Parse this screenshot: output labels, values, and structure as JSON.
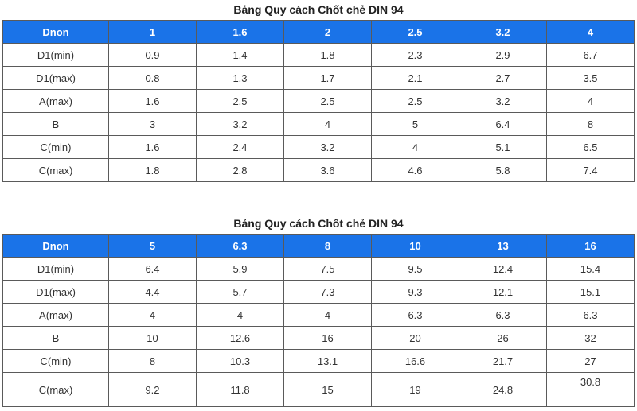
{
  "tables": [
    {
      "title": "Bảng Quy cách Chốt chẻ DIN 94",
      "header": [
        "Dnon",
        "1",
        "1.6",
        "2",
        "2.5",
        "3.2",
        "4"
      ],
      "rows": [
        [
          "D1(min)",
          "0.9",
          "1.4",
          "1.8",
          "2.3",
          "2.9",
          "6.7"
        ],
        [
          "D1(max)",
          "0.8",
          "1.3",
          "1.7",
          "2.1",
          "2.7",
          "3.5"
        ],
        [
          "A(max)",
          "1.6",
          "2.5",
          "2.5",
          "2.5",
          "3.2",
          "4"
        ],
        [
          "B",
          "3",
          "3.2",
          "4",
          "5",
          "6.4",
          "8"
        ],
        [
          "C(min)",
          "1.6",
          "2.4",
          "3.2",
          "4",
          "5.1",
          "6.5"
        ],
        [
          "C(max)",
          "1.8",
          "2.8",
          "3.6",
          "4.6",
          "5.8",
          "7.4"
        ]
      ]
    },
    {
      "title": "Bảng Quy cách Chốt chẻ DIN 94",
      "header": [
        "Dnon",
        "5",
        "6.3",
        "8",
        "10",
        "13",
        "16"
      ],
      "rows": [
        [
          "D1(min)",
          "6.4",
          "5.9",
          "7.5",
          "9.5",
          "12.4",
          "15.4"
        ],
        [
          "D1(max)",
          "4.4",
          "5.7",
          "7.3",
          "9.3",
          "12.1",
          "15.1"
        ],
        [
          "A(max)",
          "4",
          "4",
          "4",
          "6.3",
          "6.3",
          "6.3"
        ],
        [
          "B",
          "10",
          "12.6",
          "16",
          "20",
          "26",
          "32"
        ],
        [
          "C(min)",
          "8",
          "10.3",
          "13.1",
          "16.6",
          "21.7",
          "27"
        ],
        [
          "C(max)",
          "9.2",
          "11.8",
          "15",
          "19",
          "24.8",
          "30.8"
        ]
      ]
    }
  ],
  "colors": {
    "header_bg": "#1a73e8",
    "header_text": "#ffffff",
    "border": "#5a5a5a",
    "cell_text": "#333333"
  }
}
